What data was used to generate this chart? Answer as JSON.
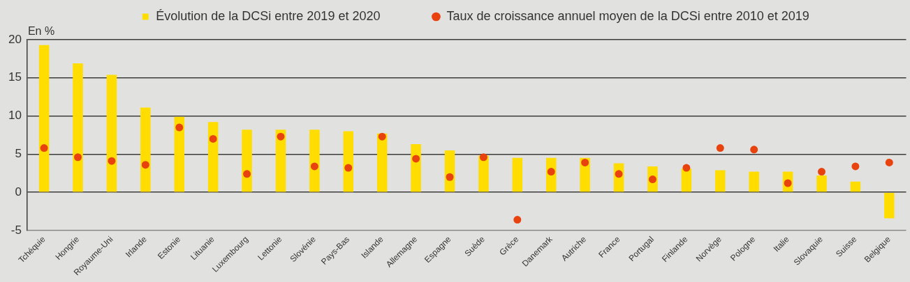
{
  "chart_data": {
    "type": "bar",
    "ylabel": "En %",
    "categories": [
      "Tchéquie",
      "Hongrie",
      "Royaume-Uni",
      "Irlande",
      "Estonie",
      "Lituanie",
      "Luxembourg",
      "Lettonie",
      "Slovénie",
      "Pays-Bas",
      "Islande",
      "Allemagne",
      "Espagne",
      "Suède",
      "Grèce",
      "Danemark",
      "Autriche",
      "France",
      "Portugal",
      "Finlande",
      "Norvège",
      "Pologne",
      "Italie",
      "Slovaquie",
      "Suisse",
      "Belgique"
    ],
    "series": [
      {
        "name": "Évolution de la DCSi entre 2019 et 2020",
        "color": "#ffdd00",
        "values": [
          19.3,
          16.9,
          15.4,
          11.1,
          9.9,
          9.2,
          8.2,
          8.2,
          8.2,
          8.0,
          7.7,
          6.3,
          5.5,
          4.8,
          4.5,
          4.5,
          4.5,
          3.8,
          3.4,
          3.1,
          2.9,
          2.7,
          2.7,
          2.2,
          1.4,
          -3.4
        ]
      },
      {
        "name": "Taux de croissance annuel moyen de la DCSi entre 2010 et 2019",
        "type": "scatter",
        "color": "#e8430f",
        "values": [
          5.8,
          4.6,
          4.1,
          3.6,
          8.5,
          7.0,
          2.4,
          7.3,
          3.4,
          3.2,
          7.3,
          4.4,
          2.0,
          4.6,
          -3.6,
          2.7,
          3.9,
          2.4,
          1.7,
          3.2,
          5.8,
          5.6,
          1.2,
          2.7,
          3.4,
          3.9
        ]
      }
    ],
    "ylim": [
      -5,
      20
    ],
    "yticks": [
      -5,
      0,
      5,
      10,
      15,
      20
    ],
    "grid": "y",
    "legend": "top",
    "marker": "circle"
  }
}
